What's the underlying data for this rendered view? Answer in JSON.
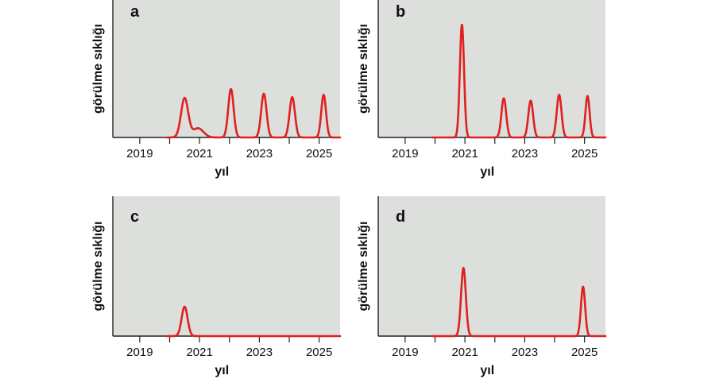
{
  "chart_data": [
    {
      "type": "line",
      "panel": "a",
      "xlabel": "yıl",
      "ylabel": "görülme sıklığı",
      "xlim": [
        2018.1,
        2025.7
      ],
      "ylim": [
        0,
        1
      ],
      "xticks": [
        2019,
        2020,
        2021,
        2022,
        2023,
        2024,
        2025
      ],
      "xtick_labels": [
        "2019",
        "2021",
        "2023",
        "2025"
      ],
      "grid": false,
      "series": [
        {
          "color": "#e0201f",
          "peaks": [
            {
              "x": 2020.5,
              "height": 0.34,
              "width": 0.12
            },
            {
              "x": 2020.95,
              "height": 0.08,
              "width": 0.18
            },
            {
              "x": 2022.05,
              "height": 0.42,
              "width": 0.09
            },
            {
              "x": 2023.15,
              "height": 0.38,
              "width": 0.09
            },
            {
              "x": 2024.1,
              "height": 0.35,
              "width": 0.09
            },
            {
              "x": 2025.15,
              "height": 0.37,
              "width": 0.08
            }
          ]
        }
      ]
    },
    {
      "type": "line",
      "panel": "b",
      "xlabel": "yıl",
      "ylabel": "görülme sıklığı",
      "xlim": [
        2018.1,
        2025.7
      ],
      "ylim": [
        0,
        1
      ],
      "xticks": [
        2019,
        2020,
        2021,
        2022,
        2023,
        2024,
        2025
      ],
      "xtick_labels": [
        "2019",
        "2021",
        "2023",
        "2025"
      ],
      "grid": false,
      "series": [
        {
          "color": "#e0201f",
          "peaks": [
            {
              "x": 2020.9,
              "height": 0.98,
              "width": 0.07
            },
            {
              "x": 2022.3,
              "height": 0.34,
              "width": 0.08
            },
            {
              "x": 2023.2,
              "height": 0.32,
              "width": 0.08
            },
            {
              "x": 2024.15,
              "height": 0.37,
              "width": 0.08
            },
            {
              "x": 2025.1,
              "height": 0.36,
              "width": 0.07
            }
          ]
        }
      ]
    },
    {
      "type": "line",
      "panel": "c",
      "xlabel": "yıl",
      "ylabel": "görülme sıklığı",
      "xlim": [
        2018.1,
        2025.7
      ],
      "ylim": [
        0,
        1
      ],
      "xticks": [
        2019,
        2020,
        2021,
        2022,
        2023,
        2024,
        2025
      ],
      "xtick_labels": [
        "2019",
        "2021",
        "2023",
        "2025"
      ],
      "grid": false,
      "series": [
        {
          "color": "#e0201f",
          "peaks": [
            {
              "x": 2020.5,
              "height": 0.25,
              "width": 0.1
            }
          ]
        }
      ]
    },
    {
      "type": "line",
      "panel": "d",
      "xlabel": "yıl",
      "ylabel": "görülme sıklığı",
      "xlim": [
        2018.1,
        2025.7
      ],
      "ylim": [
        0,
        1
      ],
      "xticks": [
        2019,
        2020,
        2021,
        2022,
        2023,
        2024,
        2025
      ],
      "xtick_labels": [
        "2019",
        "2021",
        "2023",
        "2025"
      ],
      "grid": false,
      "series": [
        {
          "color": "#e0201f",
          "peaks": [
            {
              "x": 2020.95,
              "height": 0.58,
              "width": 0.08
            },
            {
              "x": 2024.95,
              "height": 0.42,
              "width": 0.07
            }
          ]
        }
      ]
    }
  ]
}
